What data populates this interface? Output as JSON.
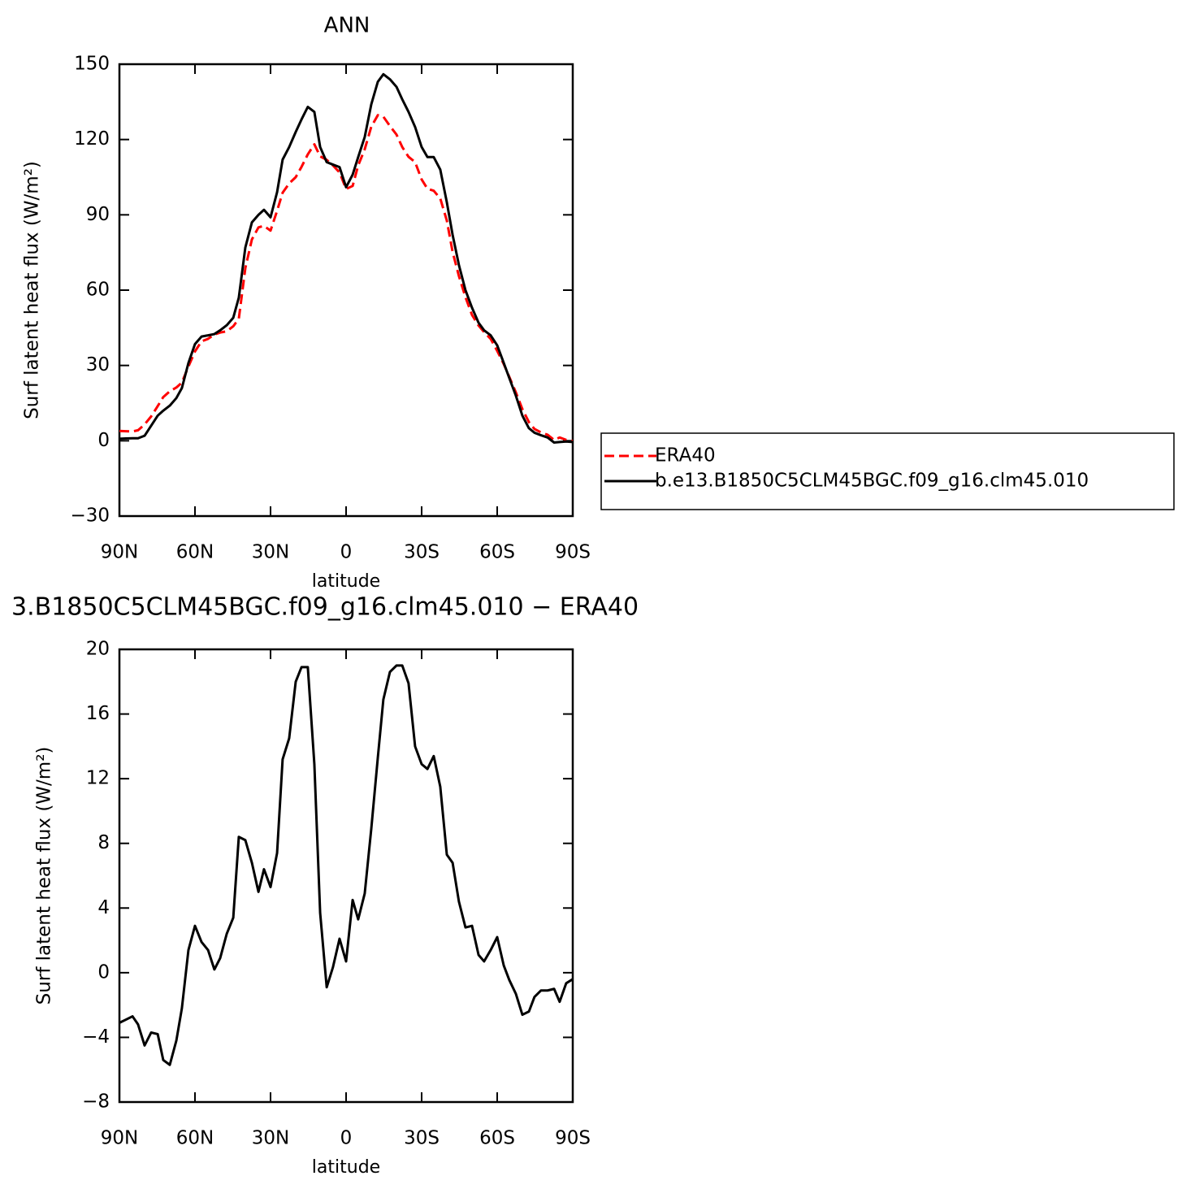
{
  "chart_data": [
    {
      "type": "line",
      "title": "ANN",
      "xlabel": "latitude",
      "ylabel": "Surf latent heat flux (W/m²)",
      "x": [
        90,
        87.4,
        84.8,
        82.6,
        80,
        77.4,
        74.8,
        72.6,
        70,
        67.4,
        65.2,
        62.6,
        60,
        57.4,
        54.8,
        52.3,
        50,
        47.4,
        44.8,
        42.6,
        40,
        37.4,
        34.8,
        32.6,
        30,
        27.4,
        25.2,
        22.6,
        20,
        17.7,
        15.2,
        12.6,
        10.3,
        7.7,
        5.2,
        2.6,
        0,
        -2.6,
        -4.8,
        -7.4,
        -10,
        -12.6,
        -14.8,
        -17.4,
        -20,
        -22.3,
        -24.8,
        -27.4,
        -30,
        -32.3,
        -34.8,
        -37.4,
        -40,
        -42.3,
        -44.8,
        -47.4,
        -50,
        -52.6,
        -54.8,
        -57.4,
        -60,
        -62.6,
        -64.8,
        -67.4,
        -70,
        -72.6,
        -74.8,
        -77.4,
        -80,
        -82.6,
        -84.8,
        -87.4,
        -90
      ],
      "series": [
        {
          "name": "ERA40",
          "color": "#ff0000",
          "linestyle": "dashed",
          "values": [
            3.9,
            3.8,
            3.7,
            4.2,
            6.5,
            9.7,
            13.8,
            17.4,
            19.7,
            21.2,
            23.2,
            29.6,
            35.6,
            39.6,
            40.6,
            42.3,
            43.1,
            43.6,
            45.6,
            48.6,
            68.8,
            80.2,
            85,
            85.6,
            83.7,
            91.6,
            98.8,
            102.5,
            105,
            109.1,
            114.1,
            118.1,
            113.3,
            111.9,
            109.65,
            106.9,
            100.3,
            101.5,
            109.7,
            116.1,
            125.1,
            129.7,
            129.1,
            125.4,
            122,
            117,
            113.1,
            111,
            104.1,
            100.4,
            99.6,
            96.5,
            87.7,
            75.2,
            65.6,
            57.2,
            50.1,
            45.9,
            43.3,
            40.6,
            35.8,
            30.55,
            25.45,
            19.3,
            12.6,
            7.4,
            4.7,
            3.3,
            2.4,
            0.3,
            1.3,
            0.35,
            -0.1
          ]
        },
        {
          "name": "b.e13.B1850C5CLM45BGC.f09_g16.clm45.010",
          "color": "#000000",
          "linestyle": "solid",
          "values": [
            0.8,
            0.9,
            1,
            1,
            2,
            6,
            10,
            12,
            14,
            17,
            21,
            31,
            38.5,
            41.5,
            42,
            42.5,
            44,
            46,
            49,
            57,
            77,
            87,
            90,
            92,
            89,
            99,
            112,
            117,
            123,
            128,
            133,
            131,
            117,
            111,
            110,
            109,
            101,
            106,
            113,
            121,
            134,
            143,
            146,
            144,
            141,
            136,
            131,
            125,
            117,
            113,
            113,
            108,
            95,
            82,
            70,
            60,
            53,
            47,
            44,
            42,
            38,
            31,
            25,
            18,
            10,
            5,
            3.2,
            2.2,
            1.3,
            -0.7,
            -0.5,
            -0.3,
            -0.5
          ]
        }
      ],
      "xlim": [
        90,
        -90
      ],
      "xticks": [
        {
          "value": 90,
          "label": "90N"
        },
        {
          "value": 60,
          "label": "60N"
        },
        {
          "value": 30,
          "label": "30N"
        },
        0,
        {
          "value": -30,
          "label": "30S"
        },
        {
          "value": -60,
          "label": "60S"
        },
        {
          "value": -90,
          "label": "90S"
        }
      ],
      "ylim": [
        -30,
        150
      ],
      "yticks": [
        {
          "value": -30,
          "label": "−30"
        },
        0,
        30,
        60,
        90,
        120,
        150
      ],
      "legend": "right"
    },
    {
      "type": "line",
      "title": "3.B1850C5CLM45BGC.f09_g16.clm45.010 − ERA40",
      "xlabel": "latitude",
      "ylabel": "Surf latent heat flux (W/m²)",
      "x": [
        90,
        87.4,
        84.8,
        82.6,
        80,
        77.4,
        74.8,
        72.6,
        70,
        67.4,
        65.2,
        62.6,
        60,
        57.4,
        54.8,
        52.3,
        50,
        47.4,
        44.8,
        42.6,
        40,
        37.4,
        34.8,
        32.6,
        30,
        27.4,
        25.2,
        22.6,
        20,
        17.7,
        15.2,
        12.6,
        10.3,
        7.7,
        5.2,
        2.6,
        0,
        -2.6,
        -4.8,
        -7.4,
        -10,
        -12.6,
        -14.8,
        -17.4,
        -20,
        -22.3,
        -24.8,
        -27.4,
        -30,
        -32.3,
        -34.8,
        -37.4,
        -40,
        -42.3,
        -44.8,
        -47.4,
        -50,
        -52.6,
        -54.8,
        -57.4,
        -60,
        -62.6,
        -64.8,
        -67.4,
        -70,
        -72.6,
        -74.8,
        -77.4,
        -80,
        -82.6,
        -84.8,
        -87.4,
        -90
      ],
      "series": [
        {
          "color": "#000000",
          "linestyle": "solid",
          "values": [
            -3.1,
            -2.9,
            -2.7,
            -3.2,
            -4.5,
            -3.7,
            -3.8,
            -5.4,
            -5.7,
            -4.2,
            -2.2,
            1.4,
            2.9,
            1.9,
            1.4,
            0.2,
            0.9,
            2.4,
            3.4,
            8.4,
            8.2,
            6.8,
            5.0,
            6.4,
            5.3,
            7.4,
            13.2,
            14.5,
            18,
            18.9,
            18.9,
            12.9,
            3.7,
            -0.9,
            0.35,
            2.1,
            0.7,
            4.5,
            3.3,
            4.9,
            8.9,
            13.3,
            16.9,
            18.6,
            19,
            19,
            17.9,
            14,
            12.9,
            12.6,
            13.4,
            11.5,
            7.3,
            6.8,
            4.4,
            2.8,
            2.9,
            1.1,
            0.7,
            1.4,
            2.2,
            0.45,
            -0.45,
            -1.3,
            -2.6,
            -2.4,
            -1.5,
            -1.1,
            -1.1,
            -1.0,
            -1.8,
            -0.65,
            -0.4
          ]
        }
      ],
      "xlim": [
        90,
        -90
      ],
      "xticks": [
        {
          "value": 90,
          "label": "90N"
        },
        {
          "value": 60,
          "label": "60N"
        },
        {
          "value": 30,
          "label": "30N"
        },
        0,
        {
          "value": -30,
          "label": "30S"
        },
        {
          "value": -60,
          "label": "60S"
        },
        {
          "value": -90,
          "label": "90S"
        }
      ],
      "ylim": [
        -8,
        20
      ],
      "yticks": [
        {
          "value": -8,
          "label": "−8"
        },
        {
          "value": -4,
          "label": "−4"
        },
        0,
        4,
        8,
        12,
        16,
        20
      ]
    }
  ]
}
